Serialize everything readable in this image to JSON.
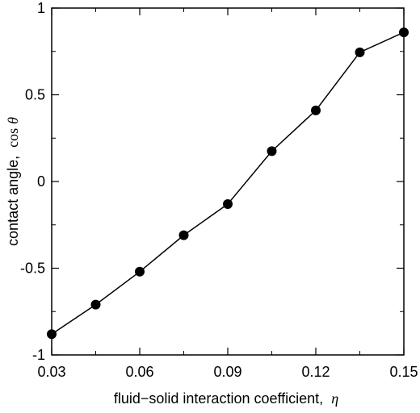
{
  "chart_data": {
    "type": "line",
    "title": "",
    "xlabel": "fluid−solid interaction coefficient,",
    "xlabel_symbol": "η",
    "ylabel": "contact angle,",
    "ylabel_fn": "cos",
    "ylabel_symbol": "θ",
    "xlim": [
      0.03,
      0.15
    ],
    "ylim": [
      -1,
      1
    ],
    "x_ticks": [
      {
        "value": 0.03,
        "label": "0.03"
      },
      {
        "value": 0.06,
        "label": "0.06"
      },
      {
        "value": 0.09,
        "label": "0.09"
      },
      {
        "value": 0.12,
        "label": "0.12"
      },
      {
        "value": 0.15,
        "label": "0.15"
      }
    ],
    "y_ticks": [
      {
        "value": -1,
        "label": "-1"
      },
      {
        "value": -0.5,
        "label": "-0.5"
      },
      {
        "value": 0,
        "label": "0"
      },
      {
        "value": 0.5,
        "label": "0.5"
      },
      {
        "value": 1,
        "label": "1"
      }
    ],
    "grid": false,
    "legend": "none",
    "series": [
      {
        "marker": "circle-filled",
        "color": "#000000",
        "x": [
          0.03,
          0.045,
          0.06,
          0.075,
          0.09,
          0.105,
          0.12,
          0.135,
          0.15
        ],
        "y": [
          -0.88,
          -0.71,
          -0.52,
          -0.31,
          -0.13,
          0.175,
          0.41,
          0.745,
          0.86
        ]
      }
    ]
  }
}
